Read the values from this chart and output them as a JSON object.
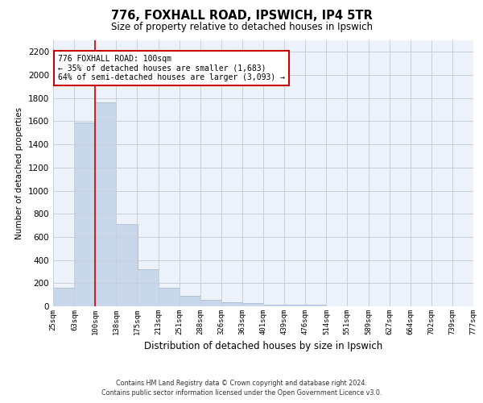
{
  "title": "776, FOXHALL ROAD, IPSWICH, IP4 5TR",
  "subtitle": "Size of property relative to detached houses in Ipswich",
  "xlabel": "Distribution of detached houses by size in Ipswich",
  "ylabel": "Number of detached properties",
  "bar_color": "#c8d8ea",
  "bar_edge_color": "#a8bcd0",
  "red_line_x": 100,
  "annotation_line1": "776 FOXHALL ROAD: 100sqm",
  "annotation_line2": "← 35% of detached houses are smaller (1,683)",
  "annotation_line3": "64% of semi-detached houses are larger (3,093) →",
  "annotation_box_color": "#ffffff",
  "annotation_box_edge": "#cc0000",
  "footer_line1": "Contains HM Land Registry data © Crown copyright and database right 2024.",
  "footer_line2": "Contains public sector information licensed under the Open Government Licence v3.0.",
  "bin_edges": [
    25,
    63,
    100,
    138,
    175,
    213,
    251,
    288,
    326,
    363,
    401,
    439,
    476,
    514,
    551,
    589,
    627,
    664,
    702,
    739,
    777
  ],
  "bin_labels": [
    "25sqm",
    "63sqm",
    "100sqm",
    "138sqm",
    "175sqm",
    "213sqm",
    "251sqm",
    "288sqm",
    "326sqm",
    "363sqm",
    "401sqm",
    "439sqm",
    "476sqm",
    "514sqm",
    "551sqm",
    "589sqm",
    "627sqm",
    "664sqm",
    "702sqm",
    "739sqm",
    "777sqm"
  ],
  "bar_heights": [
    160,
    1590,
    1760,
    710,
    320,
    160,
    90,
    55,
    35,
    25,
    15,
    15,
    15,
    0,
    0,
    0,
    0,
    0,
    0,
    0
  ],
  "ylim": [
    0,
    2300
  ],
  "yticks": [
    0,
    200,
    400,
    600,
    800,
    1000,
    1200,
    1400,
    1600,
    1800,
    2000,
    2200
  ],
  "bg_color": "#eef2fa",
  "grid_color": "#c5cfe0"
}
